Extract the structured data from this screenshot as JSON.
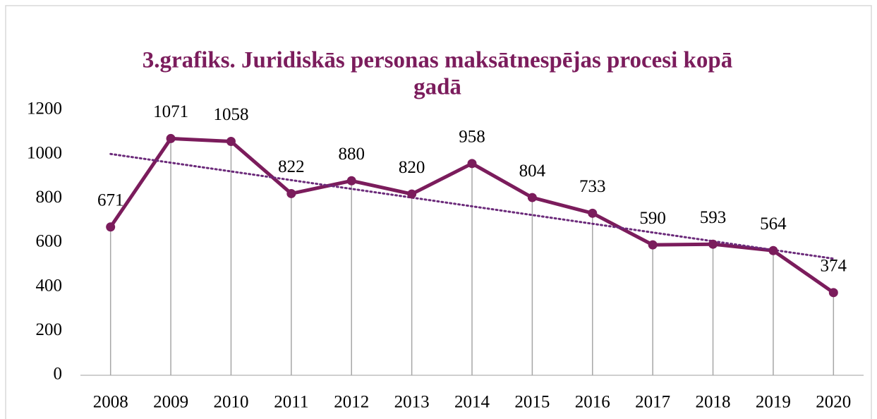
{
  "chart_data": {
    "type": "line",
    "title": [
      "3.grafiks. Juridiskās personas maksātnespējas procesi kopā",
      "gadā"
    ],
    "categories": [
      "2008",
      "2009",
      "2010",
      "2011",
      "2012",
      "2013",
      "2014",
      "2015",
      "2016",
      "2017",
      "2018",
      "2019",
      "2020"
    ],
    "values": [
      671,
      1071,
      1058,
      822,
      880,
      820,
      958,
      804,
      733,
      590,
      593,
      564,
      374
    ],
    "color": "#7b1c5c",
    "trendline": true,
    "trend_color": "#6b2a7a",
    "drop_lines": true,
    "ylim": [
      0,
      1200
    ],
    "yticks": [
      0,
      200,
      400,
      600,
      800,
      1000,
      1200
    ]
  }
}
